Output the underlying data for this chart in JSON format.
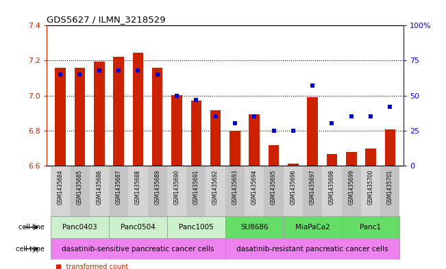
{
  "title": "GDS5627 / ILMN_3218529",
  "samples": [
    "GSM1435684",
    "GSM1435685",
    "GSM1435686",
    "GSM1435687",
    "GSM1435688",
    "GSM1435689",
    "GSM1435690",
    "GSM1435691",
    "GSM1435692",
    "GSM1435693",
    "GSM1435694",
    "GSM1435695",
    "GSM1435696",
    "GSM1435697",
    "GSM1435698",
    "GSM1435699",
    "GSM1435700",
    "GSM1435701"
  ],
  "red_values": [
    7.16,
    7.16,
    7.195,
    7.22,
    7.245,
    7.16,
    7.002,
    6.972,
    6.915,
    6.8,
    6.893,
    6.715,
    6.612,
    6.992,
    6.665,
    6.678,
    6.695,
    6.805
  ],
  "blue_values": [
    65,
    65,
    68,
    68,
    68,
    65,
    50,
    47,
    35,
    30,
    35,
    25,
    25,
    57,
    30,
    35,
    35,
    42
  ],
  "ylim_left": [
    6.6,
    7.4
  ],
  "ylim_right": [
    0,
    100
  ],
  "yticks_left": [
    6.6,
    6.8,
    7.0,
    7.2,
    7.4
  ],
  "yticks_right": [
    0,
    25,
    50,
    75,
    100
  ],
  "ytick_labels_right": [
    "0",
    "25",
    "50",
    "75",
    "100%"
  ],
  "cell_lines": [
    {
      "name": "Panc0403",
      "start": 0,
      "end": 3,
      "color": "#ccf0cc"
    },
    {
      "name": "Panc0504",
      "start": 3,
      "end": 6,
      "color": "#ccf0cc"
    },
    {
      "name": "Panc1005",
      "start": 6,
      "end": 9,
      "color": "#ccf0cc"
    },
    {
      "name": "SU8686",
      "start": 9,
      "end": 12,
      "color": "#66dd66"
    },
    {
      "name": "MiaPaCa2",
      "start": 12,
      "end": 15,
      "color": "#66dd66"
    },
    {
      "name": "Panc1",
      "start": 15,
      "end": 18,
      "color": "#66dd66"
    }
  ],
  "cell_types": [
    {
      "name": "dasatinib-sensitive pancreatic cancer cells",
      "start": 0,
      "end": 9,
      "color": "#ee82ee"
    },
    {
      "name": "dasatinib-resistant pancreatic cancer cells",
      "start": 9,
      "end": 18,
      "color": "#ee82ee"
    }
  ],
  "bar_color": "#cc2200",
  "dot_color": "#0000cc",
  "background_color": "#ffffff",
  "tick_label_color_left": "#cc2200",
  "tick_label_color_right": "#0000cc",
  "sample_col_colors": [
    "#d4d4d4",
    "#c4c4c4"
  ]
}
